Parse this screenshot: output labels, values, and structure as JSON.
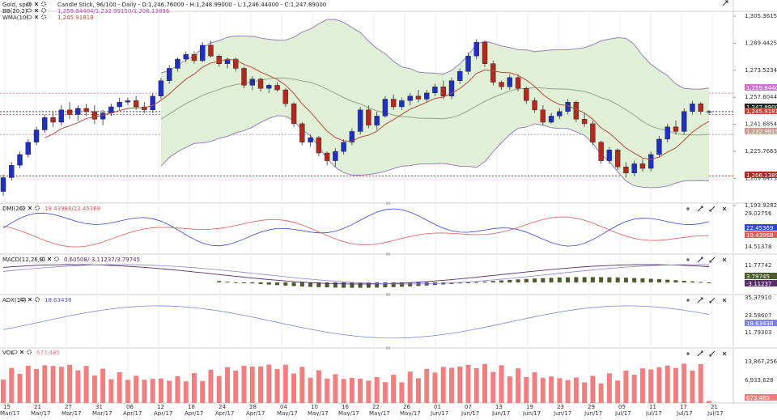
{
  "header": {
    "title": "Gold, spot",
    "chart_label": "Candle Stick, 96/100 - Daily - O:1,246.76000 - H:1,248.99000 - L:1,246.44000 - C:1,247.89000",
    "bb_label": "BB(20,2)",
    "bb_values": "1,259.84404/1,232.99150/1,206.13896",
    "wma_label": "WMA(10)",
    "wma_value": "1,245.91818"
  },
  "colors": {
    "up": "#1f2fbf",
    "down": "#b22a1f",
    "band_fill": "#dff0d6",
    "band_line": "#9b7fc0",
    "wma": "#b84a3c",
    "mid": "#9aa08c",
    "dmi_plus": "#3344cc",
    "dmi_minus": "#e05a5a",
    "macd_line": "#5a2a6a",
    "macd_signal": "#8a7fd8",
    "macd_hist": "#4d5a2a",
    "adx": "#7d86d8",
    "vol": "#f08080"
  },
  "panels": {
    "dmi": {
      "label": "DMI(20)",
      "value": "19.43968/22.45369",
      "ticks": [
        "29.02756",
        "14.51378"
      ],
      "tags": [
        "22.45369",
        "19.43968"
      ]
    },
    "macd": {
      "label": "MACD(12,26,9)",
      "value": "0.60508/-3.11237/3.79745",
      "ticks": [
        "11.77742"
      ],
      "tags": [
        "3.79745",
        "-3.11237"
      ]
    },
    "adx": {
      "label": "ADX(14)",
      "value": "18.63438",
      "ticks": [
        "35.37910",
        "23.58607",
        "11.79303"
      ],
      "tags": [
        "18.63438"
      ]
    },
    "vol": {
      "label": "VOL",
      "value": "673,485",
      "ticks": [
        "13,867,256",
        "6,933,628"
      ],
      "tags": [
        "673,485"
      ]
    }
  },
  "chart_data": {
    "type": "candlestick",
    "title": "Gold, spot",
    "price_ticks": [
      "1,305.36157",
      "1,289.44253",
      "1,273.52349",
      "1,257.60444",
      "1,241.68540",
      "1,225.76636",
      "1,209.84731",
      "1,193.92827"
    ],
    "price_tags": [
      "1,259.84404",
      "1,247.89000",
      "1,245.91818",
      "1,232.99150",
      "1,206.13896"
    ],
    "ylim": [
      1190,
      1312
    ],
    "x_labels": [
      {
        "day": "15",
        "month": "Mar/17"
      },
      {
        "day": "21",
        "month": "Mar/17"
      },
      {
        "day": "27",
        "month": "Mar/17"
      },
      {
        "day": "31",
        "month": "Mar/17"
      },
      {
        "day": "06",
        "month": "Apr/17"
      },
      {
        "day": "12",
        "month": "Apr/17"
      },
      {
        "day": "18",
        "month": "Apr/17"
      },
      {
        "day": "24",
        "month": "Apr/17"
      },
      {
        "day": "28",
        "month": "Apr/17"
      },
      {
        "day": "04",
        "month": "May/17"
      },
      {
        "day": "10",
        "month": "May/17"
      },
      {
        "day": "16",
        "month": "May/17"
      },
      {
        "day": "22",
        "month": "May/17"
      },
      {
        "day": "26",
        "month": "May/17"
      },
      {
        "day": "01",
        "month": "Jun/17"
      },
      {
        "day": "07",
        "month": "Jun/17"
      },
      {
        "day": "13",
        "month": "Jun/17"
      },
      {
        "day": "19",
        "month": "Jun/17"
      },
      {
        "day": "23",
        "month": "Jun/17"
      },
      {
        "day": "29",
        "month": "Jun/17"
      },
      {
        "day": "05",
        "month": "Jul/17"
      },
      {
        "day": "11",
        "month": "Jul/17"
      },
      {
        "day": "17",
        "month": "Jul/17"
      },
      {
        "day": "21",
        "month": "Jul/17"
      }
    ],
    "candles": [
      [
        1196,
        1207,
        1193,
        1205
      ],
      [
        1205,
        1215,
        1203,
        1213
      ],
      [
        1213,
        1222,
        1211,
        1220
      ],
      [
        1220,
        1230,
        1218,
        1228
      ],
      [
        1228,
        1238,
        1226,
        1236
      ],
      [
        1236,
        1246,
        1234,
        1244
      ],
      [
        1244,
        1248,
        1238,
        1241
      ],
      [
        1241,
        1252,
        1239,
        1249
      ],
      [
        1249,
        1254,
        1243,
        1246
      ],
      [
        1246,
        1252,
        1242,
        1250
      ],
      [
        1250,
        1253,
        1245,
        1248
      ],
      [
        1248,
        1252,
        1240,
        1243
      ],
      [
        1243,
        1249,
        1239,
        1247
      ],
      [
        1247,
        1253,
        1245,
        1251
      ],
      [
        1251,
        1257,
        1249,
        1254
      ],
      [
        1254,
        1257,
        1252,
        1255
      ],
      [
        1255,
        1258,
        1249,
        1251
      ],
      [
        1251,
        1254,
        1247,
        1249
      ],
      [
        1249,
        1260,
        1247,
        1258
      ],
      [
        1258,
        1270,
        1256,
        1268
      ],
      [
        1268,
        1278,
        1266,
        1276
      ],
      [
        1276,
        1283,
        1274,
        1282
      ],
      [
        1282,
        1287,
        1280,
        1285
      ],
      [
        1285,
        1287,
        1279,
        1281
      ],
      [
        1281,
        1293,
        1280,
        1291
      ],
      [
        1291,
        1294,
        1283,
        1284
      ],
      [
        1284,
        1285,
        1277,
        1279
      ],
      [
        1279,
        1283,
        1276,
        1282
      ],
      [
        1282,
        1283,
        1274,
        1276
      ],
      [
        1276,
        1277,
        1263,
        1265
      ],
      [
        1265,
        1271,
        1262,
        1269
      ],
      [
        1269,
        1270,
        1261,
        1263
      ],
      [
        1263,
        1266,
        1260,
        1265
      ],
      [
        1265,
        1267,
        1261,
        1262
      ],
      [
        1262,
        1263,
        1251,
        1253
      ],
      [
        1253,
        1254,
        1238,
        1240
      ],
      [
        1240,
        1241,
        1226,
        1228
      ],
      [
        1228,
        1233,
        1225,
        1231
      ],
      [
        1231,
        1232,
        1219,
        1221
      ],
      [
        1221,
        1222,
        1213,
        1216
      ],
      [
        1216,
        1224,
        1212,
        1222
      ],
      [
        1222,
        1230,
        1220,
        1228
      ],
      [
        1228,
        1237,
        1226,
        1235
      ],
      [
        1235,
        1251,
        1233,
        1249
      ],
      [
        1249,
        1252,
        1237,
        1239
      ],
      [
        1239,
        1248,
        1236,
        1245
      ],
      [
        1245,
        1258,
        1244,
        1256
      ],
      [
        1256,
        1259,
        1249,
        1251
      ],
      [
        1251,
        1257,
        1249,
        1255
      ],
      [
        1255,
        1260,
        1252,
        1258
      ],
      [
        1258,
        1262,
        1254,
        1256
      ],
      [
        1256,
        1262,
        1254,
        1260
      ],
      [
        1260,
        1266,
        1258,
        1264
      ],
      [
        1264,
        1268,
        1256,
        1258
      ],
      [
        1258,
        1270,
        1256,
        1268
      ],
      [
        1268,
        1276,
        1266,
        1274
      ],
      [
        1274,
        1286,
        1272,
        1284
      ],
      [
        1284,
        1295,
        1282,
        1293
      ],
      [
        1293,
        1294,
        1277,
        1279
      ],
      [
        1279,
        1281,
        1265,
        1267
      ],
      [
        1267,
        1268,
        1262,
        1264
      ],
      [
        1264,
        1272,
        1262,
        1270
      ],
      [
        1270,
        1272,
        1261,
        1263
      ],
      [
        1263,
        1264,
        1253,
        1255
      ],
      [
        1255,
        1257,
        1247,
        1249
      ],
      [
        1249,
        1252,
        1239,
        1241
      ],
      [
        1241,
        1247,
        1240,
        1245
      ],
      [
        1245,
        1250,
        1243,
        1248
      ],
      [
        1248,
        1256,
        1246,
        1254
      ],
      [
        1254,
        1255,
        1241,
        1243
      ],
      [
        1243,
        1247,
        1238,
        1240
      ],
      [
        1240,
        1242,
        1226,
        1228
      ],
      [
        1228,
        1229,
        1214,
        1216
      ],
      [
        1216,
        1225,
        1214,
        1223
      ],
      [
        1223,
        1224,
        1210,
        1212
      ],
      [
        1212,
        1215,
        1205,
        1208
      ],
      [
        1208,
        1216,
        1206,
        1214
      ],
      [
        1214,
        1217,
        1209,
        1211
      ],
      [
        1211,
        1222,
        1209,
        1220
      ],
      [
        1220,
        1232,
        1218,
        1230
      ],
      [
        1230,
        1240,
        1228,
        1238
      ],
      [
        1238,
        1242,
        1233,
        1235
      ],
      [
        1235,
        1250,
        1233,
        1248
      ],
      [
        1248,
        1255,
        1246,
        1253
      ],
      [
        1253,
        1254,
        1246,
        1248
      ],
      [
        1248,
        1249,
        1246,
        1248
      ]
    ]
  }
}
